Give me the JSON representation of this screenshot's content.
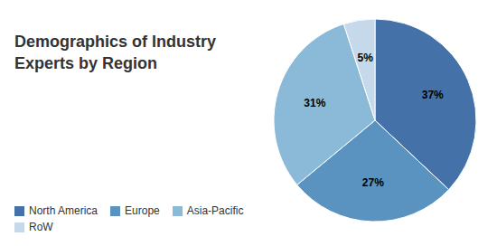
{
  "chart_data": {
    "type": "pie",
    "title": "Demographics of Industry\nExperts by Region",
    "categories": [
      "North America",
      "Europe",
      "Asia-Pacific",
      "RoW"
    ],
    "values": [
      37,
      27,
      31,
      5
    ],
    "value_labels": [
      "37%",
      "27%",
      "31%",
      "5%"
    ],
    "data_labels": true,
    "colors": [
      "#4472A8",
      "#5B93C0",
      "#8BBAD8",
      "#C5D9EA"
    ],
    "legend": "lower left"
  }
}
